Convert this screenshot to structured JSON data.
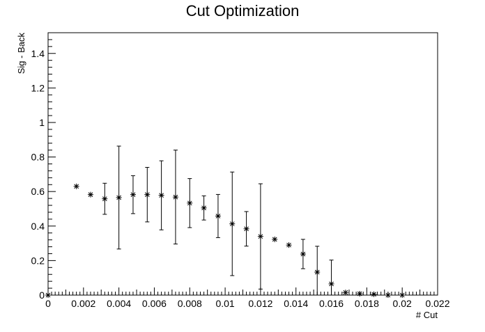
{
  "chart_data": {
    "type": "scatter",
    "title": "Cut Optimization",
    "xlabel": "# Cut",
    "ylabel": "Sig - Back",
    "xlim": [
      0,
      0.022
    ],
    "ylim": [
      0,
      1.52
    ],
    "x_ticks": [
      {
        "value": 0,
        "label": "0"
      },
      {
        "value": 0.002,
        "label": "0.002"
      },
      {
        "value": 0.004,
        "label": "0.004"
      },
      {
        "value": 0.006,
        "label": "0.006"
      },
      {
        "value": 0.008,
        "label": "0.008"
      },
      {
        "value": 0.01,
        "label": "0.01"
      },
      {
        "value": 0.012,
        "label": "0.012"
      },
      {
        "value": 0.014,
        "label": "0.014"
      },
      {
        "value": 0.016,
        "label": "0.016"
      },
      {
        "value": 0.018,
        "label": "0.018"
      },
      {
        "value": 0.02,
        "label": "0.02"
      },
      {
        "value": 0.022,
        "label": "0.022"
      }
    ],
    "y_ticks": [
      {
        "value": 0,
        "label": "0"
      },
      {
        "value": 0.2,
        "label": "0.2"
      },
      {
        "value": 0.4,
        "label": "0.4"
      },
      {
        "value": 0.6,
        "label": "0.6"
      },
      {
        "value": 0.8,
        "label": "0.8"
      },
      {
        "value": 1.0,
        "label": "1"
      },
      {
        "value": 1.2,
        "label": "1.2"
      },
      {
        "value": 1.4,
        "label": "1.4"
      }
    ],
    "points": [
      {
        "x": 0.0,
        "y": 0.0,
        "err": 0.0
      },
      {
        "x": 0.0016,
        "y": 0.63,
        "err": 0.0
      },
      {
        "x": 0.0024,
        "y": 0.582,
        "err": 0.0
      },
      {
        "x": 0.0032,
        "y": 0.558,
        "err": 0.09
      },
      {
        "x": 0.004,
        "y": 0.565,
        "err": 0.298
      },
      {
        "x": 0.0048,
        "y": 0.582,
        "err": 0.11
      },
      {
        "x": 0.0056,
        "y": 0.582,
        "err": 0.158
      },
      {
        "x": 0.0064,
        "y": 0.578,
        "err": 0.2
      },
      {
        "x": 0.0072,
        "y": 0.568,
        "err": 0.272
      },
      {
        "x": 0.008,
        "y": 0.533,
        "err": 0.142
      },
      {
        "x": 0.0088,
        "y": 0.505,
        "err": 0.07
      },
      {
        "x": 0.0096,
        "y": 0.458,
        "err": 0.125
      },
      {
        "x": 0.0104,
        "y": 0.413,
        "err": 0.3
      },
      {
        "x": 0.0112,
        "y": 0.384,
        "err": 0.1
      },
      {
        "x": 0.012,
        "y": 0.34,
        "err": 0.305
      },
      {
        "x": 0.0128,
        "y": 0.323,
        "err": 0.0
      },
      {
        "x": 0.0136,
        "y": 0.29,
        "err": 0.0
      },
      {
        "x": 0.0144,
        "y": 0.238,
        "err": 0.085
      },
      {
        "x": 0.0152,
        "y": 0.133,
        "err": 0.15
      },
      {
        "x": 0.016,
        "y": 0.065,
        "err": 0.138
      },
      {
        "x": 0.0168,
        "y": 0.015,
        "err": 0.0
      },
      {
        "x": 0.0176,
        "y": 0.008,
        "err": 0.0
      },
      {
        "x": 0.0184,
        "y": 0.005,
        "err": 0.0
      },
      {
        "x": 0.0192,
        "y": 0.0,
        "err": 0.0
      },
      {
        "x": 0.02,
        "y": 0.0,
        "err": 0.0
      }
    ],
    "grid": false,
    "legend": "none",
    "marker": "asterisk",
    "colors": {
      "marker": "#000000",
      "frame": "#000000",
      "background": "#ffffff"
    }
  }
}
